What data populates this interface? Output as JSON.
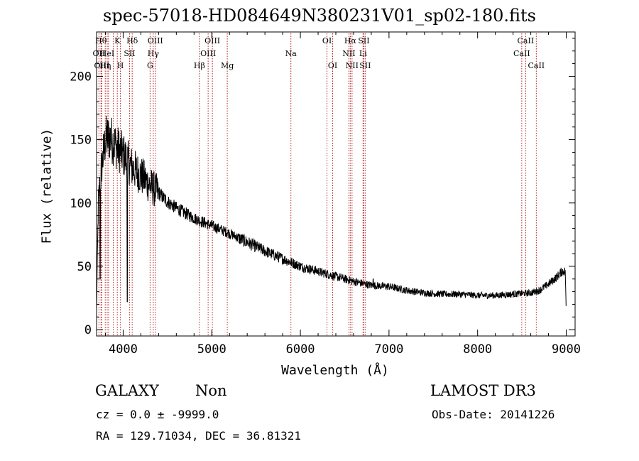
{
  "chart_data": {
    "type": "line",
    "title": "spec-57018-HD084649N380231V01_sp02-180.fits",
    "xlabel": "Wavelength (Å)",
    "ylabel": "Flux (relative)",
    "xlim": [
      3700,
      9100
    ],
    "ylim": [
      -5,
      235
    ],
    "xticks": [
      4000,
      5000,
      6000,
      7000,
      8000,
      9000
    ],
    "yticks": [
      0,
      50,
      100,
      150,
      200
    ],
    "spectrum_anchors": {
      "wavelength": [
        3700,
        3720,
        3760,
        3800,
        3850,
        3900,
        3950,
        4000,
        4050,
        4100,
        4200,
        4300,
        4400,
        4500,
        4600,
        4700,
        4800,
        4900,
        5000,
        5100,
        5200,
        5400,
        5600,
        5800,
        6000,
        6200,
        6400,
        6600,
        6800,
        7000,
        7200,
        7400,
        7600,
        7800,
        8000,
        8200,
        8400,
        8600,
        8700,
        8800,
        8900,
        8950,
        8990,
        9000
      ],
      "flux": [
        15,
        100,
        130,
        150,
        152,
        147,
        142,
        138,
        133,
        128,
        122,
        114,
        108,
        101,
        96,
        92,
        88,
        85,
        82,
        79,
        76,
        69,
        62,
        56,
        50,
        46,
        42,
        38,
        35,
        34,
        31,
        29,
        28,
        28,
        27,
        27,
        28,
        29,
        31,
        36,
        42,
        46,
        46,
        10
      ]
    },
    "absorption_dips": [
      {
        "wavelength": 4047,
        "flux": 22
      },
      {
        "wavelength": 3740,
        "flux": 40
      }
    ],
    "emission_peaks": [
      {
        "wavelength": 6822,
        "flux": 40
      }
    ],
    "line_markers": [
      {
        "x": 3727,
        "row": 1,
        "label": "OII"
      },
      {
        "x": 3750,
        "row": 0,
        "label": "Hθ"
      },
      {
        "x": 3760,
        "row": 2,
        "label": "OIII"
      },
      {
        "x": 3798,
        "row": 2,
        "label": "Hη"
      },
      {
        "x": 3820,
        "row": 1,
        "label": "HeI"
      },
      {
        "x": 3835,
        "row": 1,
        "label": ""
      },
      {
        "x": 3889,
        "row": 1,
        "label": ""
      },
      {
        "x": 3934,
        "row": 0,
        "label": "K"
      },
      {
        "x": 3969,
        "row": 2,
        "label": "H"
      },
      {
        "x": 4072,
        "row": 1,
        "label": "SII"
      },
      {
        "x": 4102,
        "row": 0,
        "label": "Hδ"
      },
      {
        "x": 4304,
        "row": 2,
        "label": "G"
      },
      {
        "x": 4340,
        "row": 1,
        "label": "Hγ"
      },
      {
        "x": 4363,
        "row": 0,
        "label": "OIII"
      },
      {
        "x": 4861,
        "row": 2,
        "label": "Hβ"
      },
      {
        "x": 4959,
        "row": 1,
        "label": "OIII"
      },
      {
        "x": 5007,
        "row": 0,
        "label": "OIII"
      },
      {
        "x": 5175,
        "row": 2,
        "label": "Mg"
      },
      {
        "x": 5893,
        "row": 1,
        "label": "Na"
      },
      {
        "x": 6300,
        "row": 0,
        "label": "OI"
      },
      {
        "x": 6364,
        "row": 2,
        "label": "OI"
      },
      {
        "x": 6548,
        "row": 1,
        "label": "NII"
      },
      {
        "x": 6563,
        "row": 0,
        "label": "Hα"
      },
      {
        "x": 6583,
        "row": 2,
        "label": "NII"
      },
      {
        "x": 6707,
        "row": 1,
        "label": "Li"
      },
      {
        "x": 6716,
        "row": 0,
        "label": "SII"
      },
      {
        "x": 6731,
        "row": 2,
        "label": "SII"
      },
      {
        "x": 8498,
        "row": 1,
        "label": "CaII"
      },
      {
        "x": 8542,
        "row": 0,
        "label": "CaII"
      },
      {
        "x": 8662,
        "row": 2,
        "label": "CaII"
      }
    ]
  },
  "info": {
    "class_label": "GALAXY",
    "subclass_label": "Non",
    "survey_label": "LAMOST DR3",
    "cz_text": "cz = 0.0 ± -9999.0",
    "obs_date_text": "Obs-Date: 20141226",
    "radec_text": "RA = 129.71034, DEC =  36.81321"
  },
  "colors": {
    "line_marker": "#b22222",
    "spectrum": "#000000",
    "axes": "#000000"
  }
}
